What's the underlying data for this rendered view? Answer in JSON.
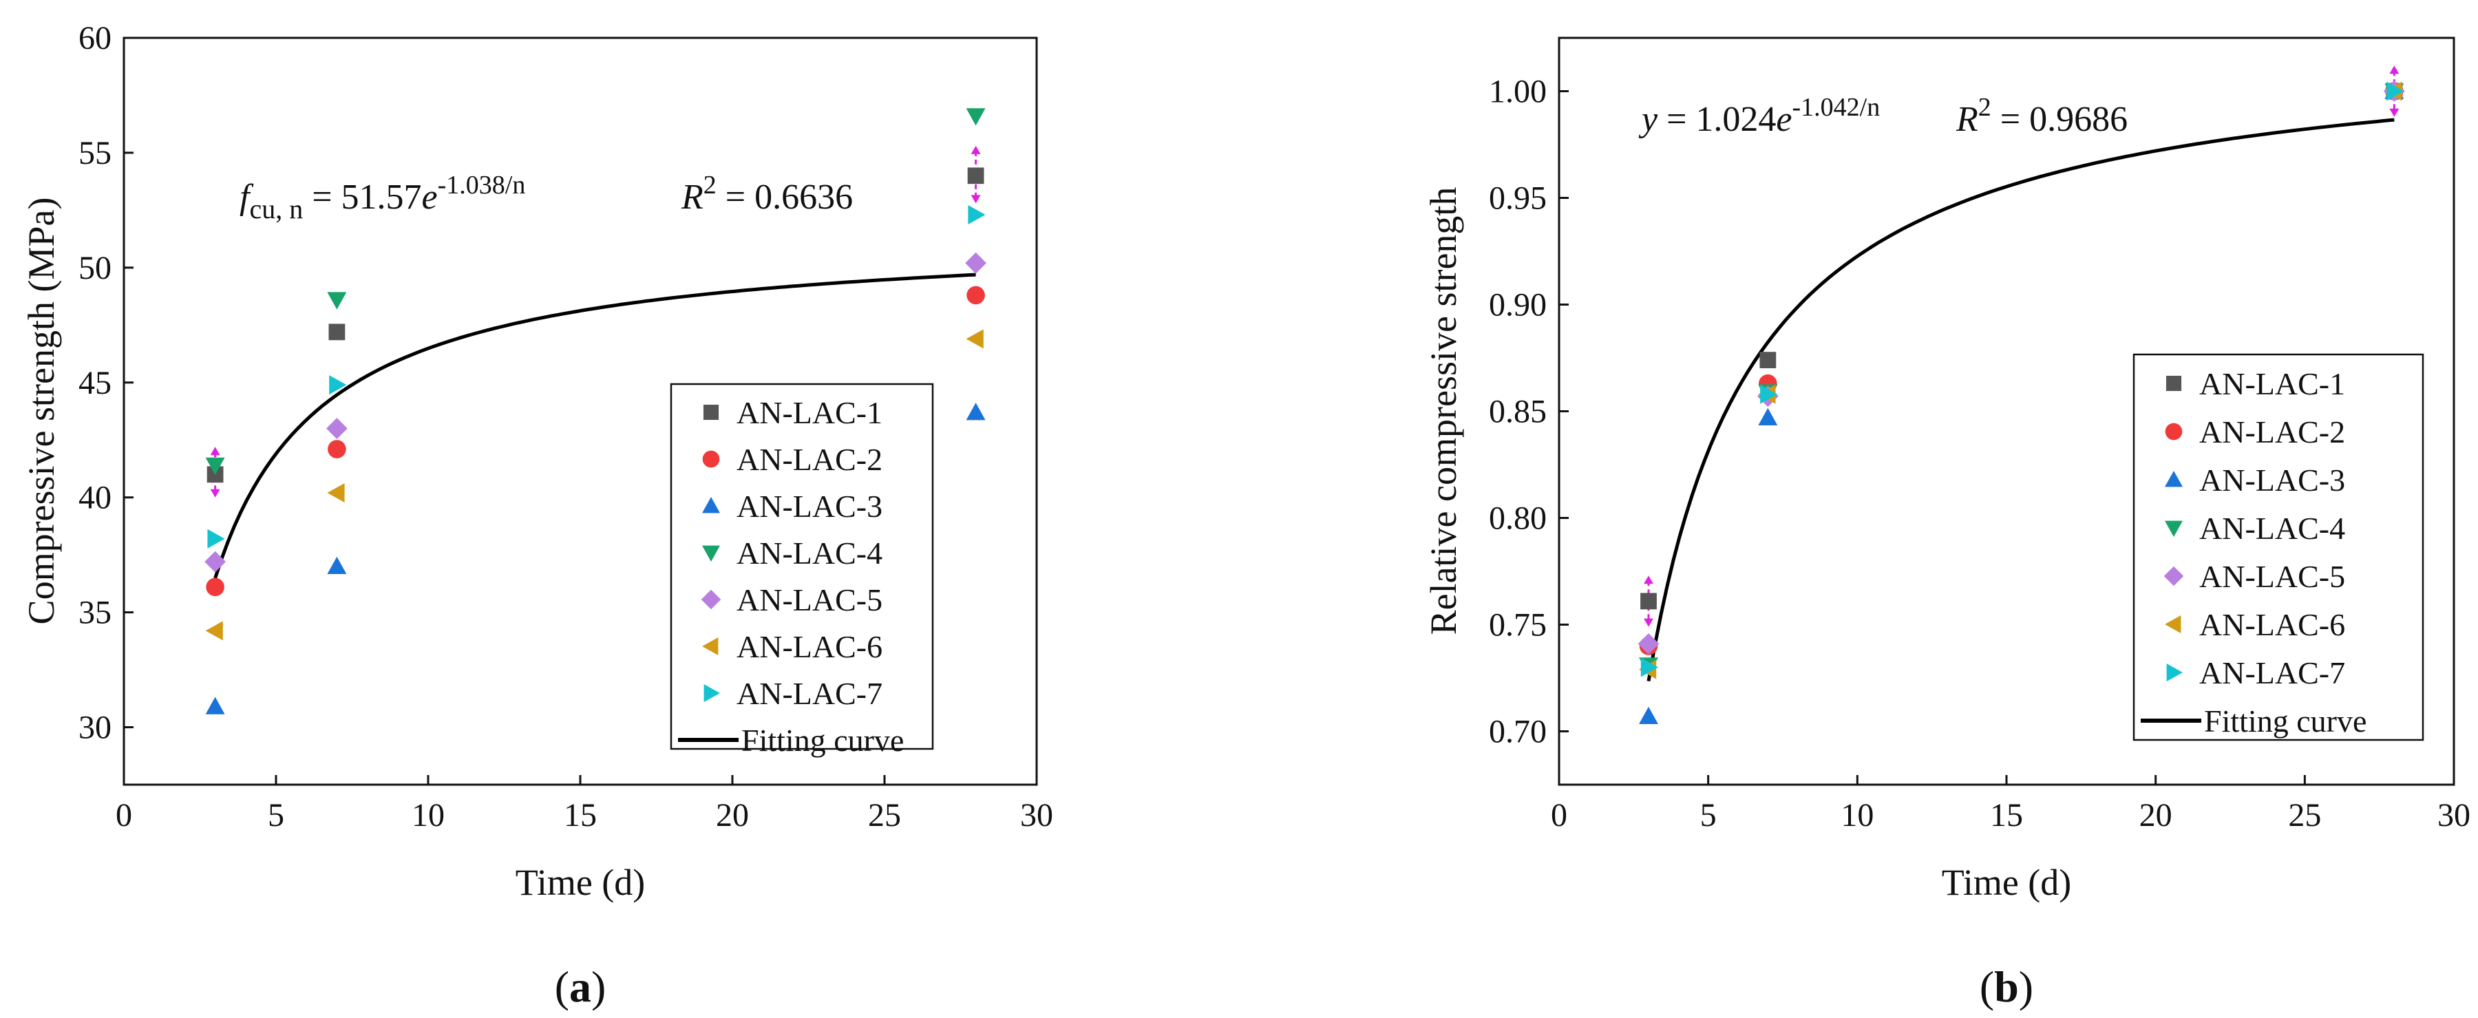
{
  "chart_data": [
    {
      "id": "a",
      "type": "scatter",
      "panel_label": "a",
      "xlabel": "Time (d)",
      "ylabel": "Compressive strength (MPa)",
      "xlim": [
        0,
        30
      ],
      "ylim": [
        27.5,
        60
      ],
      "xticks": [
        0,
        5,
        10,
        15,
        20,
        25,
        30
      ],
      "yticks": [
        30,
        35,
        40,
        45,
        50,
        55,
        60
      ],
      "grid": false,
      "legend_position": "bottom-right",
      "equation": {
        "lhs_f": "f",
        "lhs_sub": "cu, n",
        "eq_coef": " = 51.57",
        "base": "e",
        "exponent": "-1.038/n",
        "r2_r": "R",
        "r2_sup": "2",
        "r2_value": " = 0.6636"
      },
      "series": [
        {
          "name": "AN-LAC-1",
          "marker": "square",
          "color": "#555555",
          "x": [
            3,
            7,
            28
          ],
          "y": [
            41.0,
            47.2,
            54.0
          ]
        },
        {
          "name": "AN-LAC-2",
          "marker": "circle",
          "color": "#f03a3a",
          "x": [
            3,
            7,
            28
          ],
          "y": [
            36.1,
            42.1,
            48.8
          ]
        },
        {
          "name": "AN-LAC-3",
          "marker": "triangle-up",
          "color": "#1a73d9",
          "x": [
            3,
            7,
            28
          ],
          "y": [
            30.9,
            37.0,
            43.7
          ]
        },
        {
          "name": "AN-LAC-4",
          "marker": "triangle-down",
          "color": "#18a36a",
          "x": [
            3,
            7,
            28
          ],
          "y": [
            41.4,
            48.6,
            56.6
          ]
        },
        {
          "name": "AN-LAC-5",
          "marker": "diamond",
          "color": "#b87fe0",
          "x": [
            3,
            7,
            28
          ],
          "y": [
            37.2,
            43.0,
            50.2
          ]
        },
        {
          "name": "AN-LAC-6",
          "marker": "triangle-left",
          "color": "#d39a14",
          "x": [
            3,
            7,
            28
          ],
          "y": [
            34.2,
            40.2,
            46.9
          ]
        },
        {
          "name": "AN-LAC-7",
          "marker": "triangle-right",
          "color": "#14c3cf",
          "x": [
            3,
            7,
            28
          ],
          "y": [
            38.2,
            44.9,
            52.3
          ]
        }
      ],
      "fit": {
        "name": "Fitting curve",
        "a": 51.57,
        "b": 1.038,
        "x_from": 3,
        "x_to": 28
      },
      "error_bars": [
        {
          "x": 3,
          "low": 40.0,
          "high": 42.2
        },
        {
          "x": 28,
          "low": 52.8,
          "high": 55.3
        }
      ],
      "error_color": "#e020e0"
    },
    {
      "id": "b",
      "type": "scatter",
      "panel_label": "b",
      "xlabel": "Time (d)",
      "ylabel": "Relative compressive strength",
      "xlim": [
        0,
        30
      ],
      "ylim": [
        0.675,
        1.025
      ],
      "xticks": [
        0,
        5,
        10,
        15,
        20,
        25,
        30
      ],
      "yticks": [
        0.7,
        0.75,
        0.8,
        0.85,
        0.9,
        0.95,
        1.0
      ],
      "tick_decimals": 2,
      "grid": false,
      "legend_position": "bottom-right",
      "equation": {
        "lhs_y": "y",
        "eq_coef": " = 1.024",
        "base": "e",
        "exponent": "-1.042/n",
        "r2_r": "R",
        "r2_sup": "2",
        "r2_value": " = 0.9686"
      },
      "series": [
        {
          "name": "AN-LAC-1",
          "marker": "square",
          "color": "#555555",
          "x": [
            3,
            7,
            28
          ],
          "y": [
            0.761,
            0.874,
            1.0
          ]
        },
        {
          "name": "AN-LAC-2",
          "marker": "circle",
          "color": "#f03a3a",
          "x": [
            3,
            7,
            28
          ],
          "y": [
            0.74,
            0.863,
            1.0
          ]
        },
        {
          "name": "AN-LAC-3",
          "marker": "triangle-up",
          "color": "#1a73d9",
          "x": [
            3,
            7,
            28
          ],
          "y": [
            0.707,
            0.847,
            1.0
          ]
        },
        {
          "name": "AN-LAC-4",
          "marker": "triangle-down",
          "color": "#18a36a",
          "x": [
            3,
            7,
            28
          ],
          "y": [
            0.731,
            0.859,
            1.0
          ]
        },
        {
          "name": "AN-LAC-5",
          "marker": "diamond",
          "color": "#b87fe0",
          "x": [
            3,
            7,
            28
          ],
          "y": [
            0.741,
            0.857,
            1.0
          ]
        },
        {
          "name": "AN-LAC-6",
          "marker": "triangle-left",
          "color": "#d39a14",
          "x": [
            3,
            7,
            28
          ],
          "y": [
            0.729,
            0.858,
            1.0
          ]
        },
        {
          "name": "AN-LAC-7",
          "marker": "triangle-right",
          "color": "#14c3cf",
          "x": [
            3,
            7,
            28
          ],
          "y": [
            0.73,
            0.858,
            1.0
          ]
        }
      ],
      "fit": {
        "name": "Fitting curve",
        "a": 1.024,
        "b": 1.042,
        "x_from": 3,
        "x_to": 28
      },
      "error_bars": [
        {
          "x": 3,
          "low": 0.749,
          "high": 0.773
        },
        {
          "x": 28,
          "low": 0.988,
          "high": 1.012
        }
      ],
      "error_color": "#e020e0"
    }
  ]
}
